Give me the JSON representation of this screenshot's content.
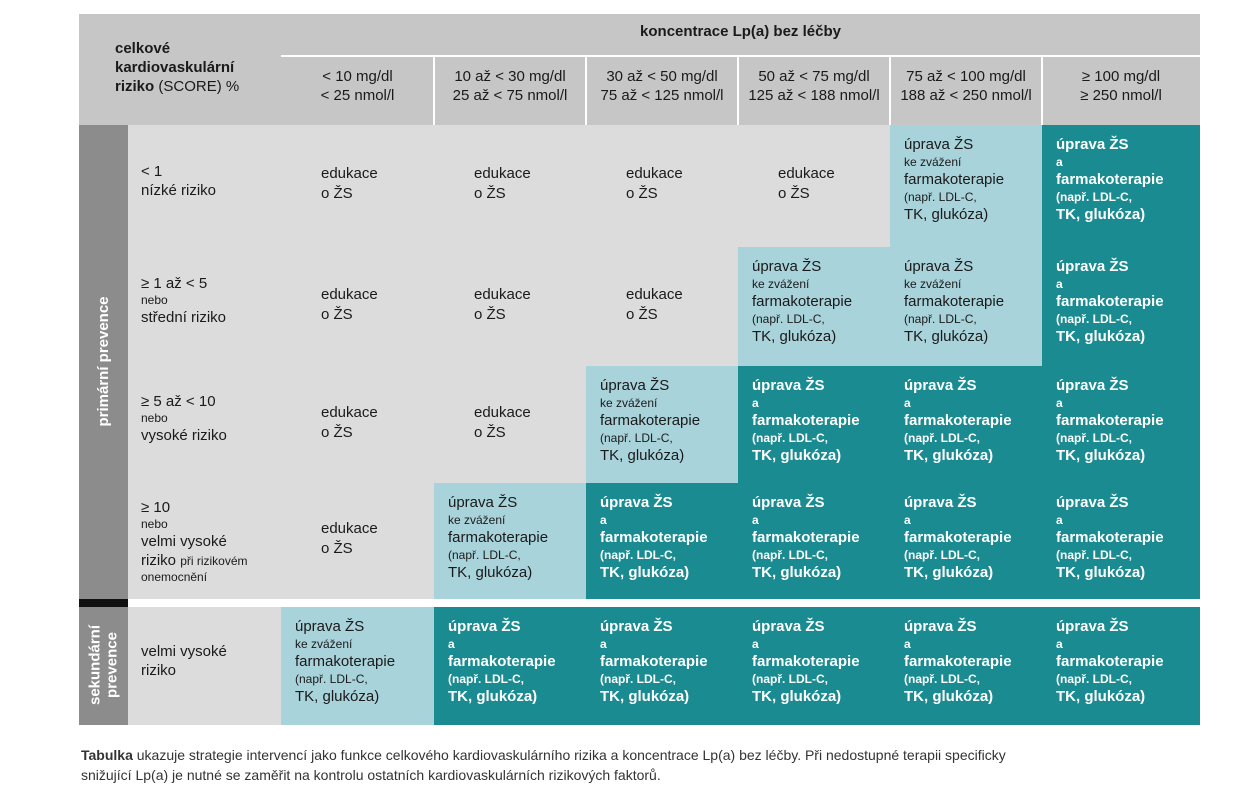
{
  "header": {
    "risk_title_1": "celkové",
    "risk_title_2": "kardiovaskulární",
    "risk_title_3a": "riziko",
    "risk_title_3b": "(SCORE) %",
    "lpa_title": "koncentrace Lp(a) bez léčby",
    "columns": [
      {
        "mg": "< 10 mg/dl",
        "nmol": "< 25 nmol/l"
      },
      {
        "mg": "10 až < 30 mg/dl",
        "nmol": "25 až < 75 nmol/l"
      },
      {
        "mg": "30 až < 50 mg/dl",
        "nmol": "75 až < 125 nmol/l"
      },
      {
        "mg": "50 až < 75 mg/dl",
        "nmol": "125 až < 188 nmol/l"
      },
      {
        "mg": "75 až < 100 mg/dl",
        "nmol": "188 až < 250 nmol/l"
      },
      {
        "mg": "≥ 100 mg/dl",
        "nmol": "≥ 250 nmol/l"
      }
    ]
  },
  "groups": {
    "primary": "primární prevence",
    "secondary_1": "sekundární",
    "secondary_2": "prevence"
  },
  "rows": [
    {
      "l1": "< 1",
      "l2": "nízké riziko"
    },
    {
      "l1": "≥ 1 až < 5",
      "l2": "nebo",
      "l3": "střední riziko"
    },
    {
      "l1": "≥ 5 až < 10",
      "l2": "nebo",
      "l3": "vysoké riziko"
    },
    {
      "l1": "≥ 10",
      "l2": "nebo",
      "l3": "velmi vysoké",
      "l4a": "riziko",
      "l4b": "při rizikovém",
      "l5": "onemocnění"
    },
    {
      "l1": "velmi vysoké",
      "l2": "riziko"
    }
  ],
  "cells": {
    "edu_1": "edukace",
    "edu_2": "o ŽS",
    "light_1": "úprava ŽS",
    "light_2": "ke zvážení",
    "light_3": "farmakoterapie",
    "light_4": "(např. LDL-C,",
    "light_5": "TK, glukóza)",
    "dark_1": "úprava ŽS",
    "dark_2": "a",
    "dark_3": "farmakoterapie",
    "dark_4": "(např. LDL-C,",
    "dark_5": "TK, glukóza)"
  },
  "matrix": [
    [
      "edu",
      "edu",
      "edu",
      "edu",
      "light",
      "dark"
    ],
    [
      "edu",
      "edu",
      "edu",
      "light",
      "light",
      "dark"
    ],
    [
      "edu",
      "edu",
      "light",
      "dark",
      "dark",
      "dark"
    ],
    [
      "edu",
      "light",
      "dark",
      "dark",
      "dark",
      "dark"
    ],
    [
      "light",
      "dark",
      "dark",
      "dark",
      "dark",
      "dark"
    ]
  ],
  "caption": {
    "bold": "Tabulka",
    "line1": " ukazuje strategie intervencí jako funkce celkového kardiovaskulárního rizika a koncentrace Lp(a) bez léčby. Při nedostupné terapii specificky",
    "line2": "snižující Lp(a) je nutné se zaměřit na kontrolu ostatních kardiovaskulárních rizikových faktorů."
  },
  "colors": {
    "header": "#c6c6c6",
    "education": "#dcdcdc",
    "consider": "#a9d3db",
    "treat": "#1a8b90",
    "side_band": "#8c8c8c"
  }
}
